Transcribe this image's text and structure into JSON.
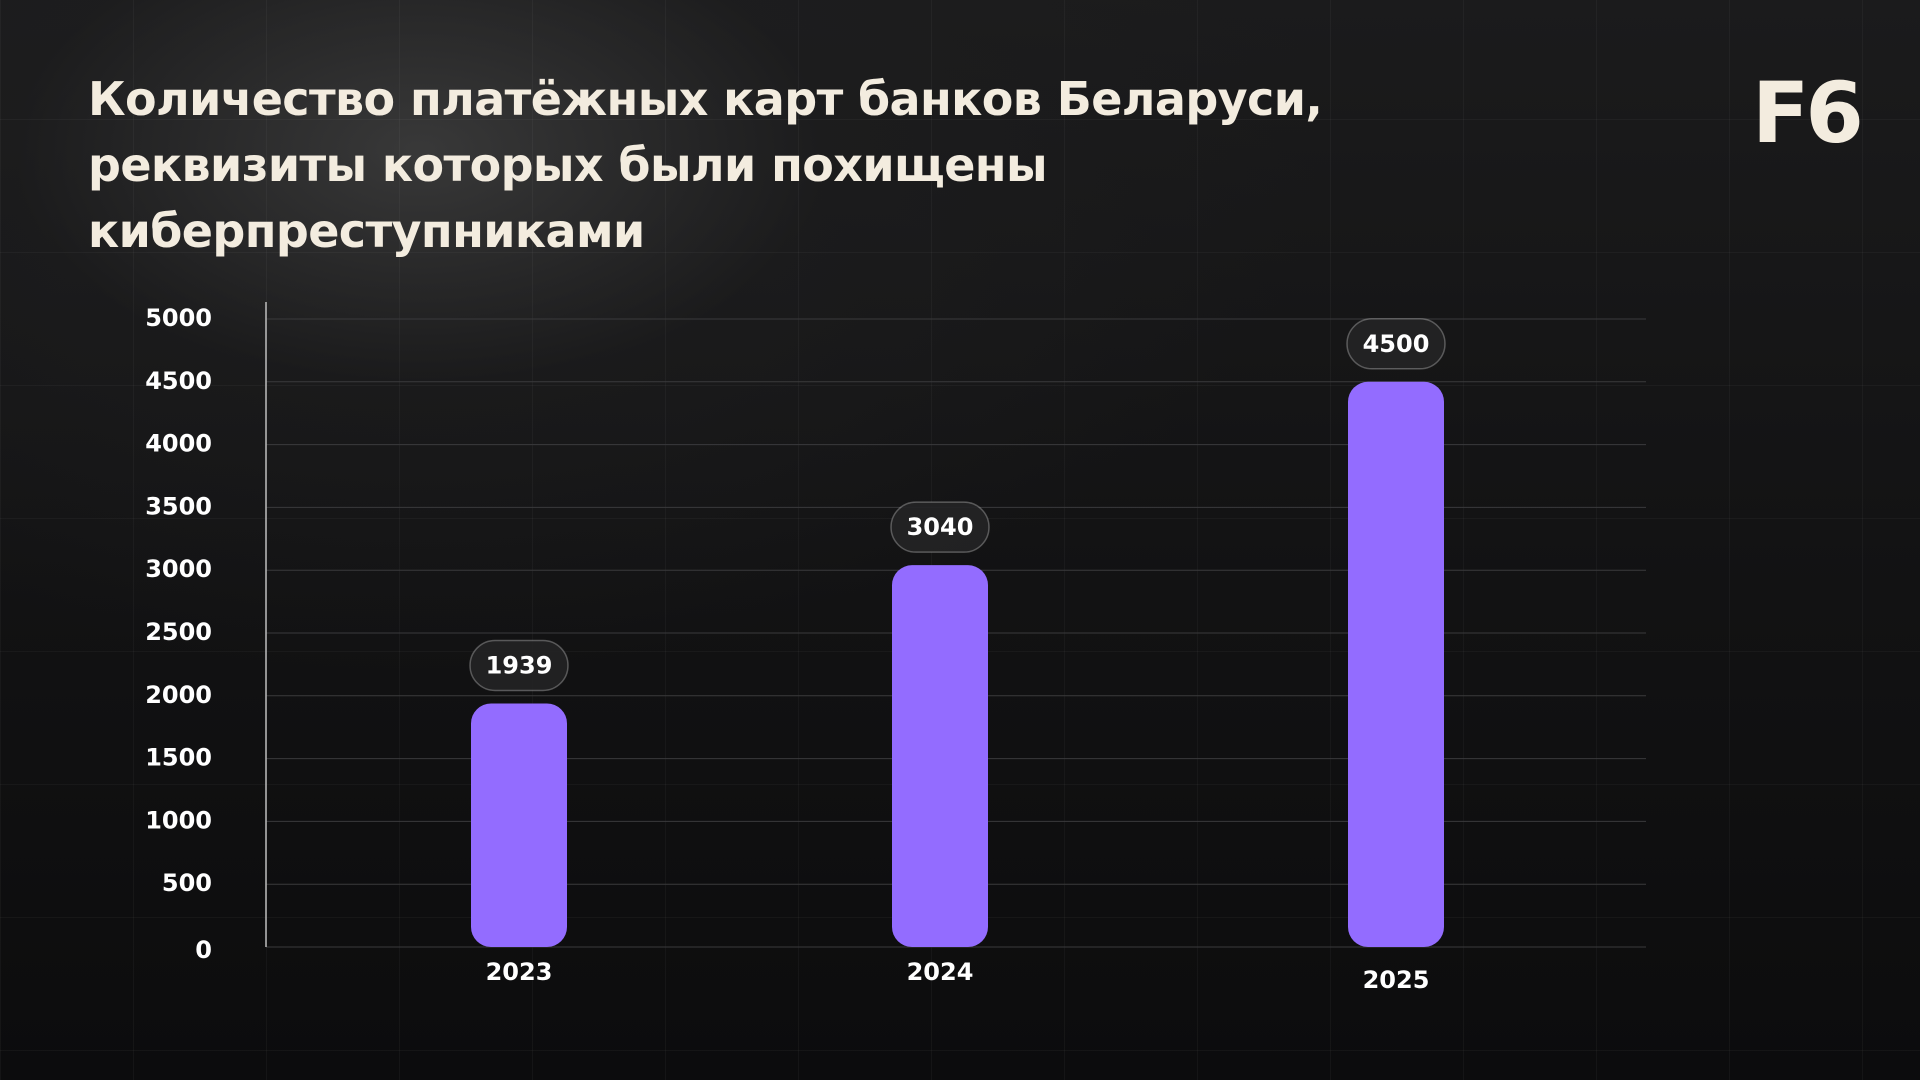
{
  "title_lines": [
    "Количество платёжных карт банков Беларуси,",
    "реквизиты которых были похищены киберпреступниками"
  ],
  "logo": "F6",
  "colors": {
    "bar": "#936cff",
    "text": "#f3ecdf",
    "gridline": "#3a3a3c"
  },
  "chart_data": {
    "type": "bar",
    "title": "Количество платёжных карт банков Беларуси, реквизиты которых были похищены киберпреступниками",
    "categories": [
      "2023",
      "2024",
      "2025"
    ],
    "values": [
      1939,
      3040,
      4500
    ],
    "data_labels": [
      "1939",
      "3040",
      "4500"
    ],
    "ylim": [
      0,
      5000
    ],
    "yticks": [
      "0",
      "500",
      "1000",
      "1500",
      "2000",
      "2500",
      "3000",
      "3500",
      "4000",
      "4500",
      "5000"
    ],
    "xlabel": "",
    "ylabel": "",
    "grid": true,
    "legend": "none"
  }
}
